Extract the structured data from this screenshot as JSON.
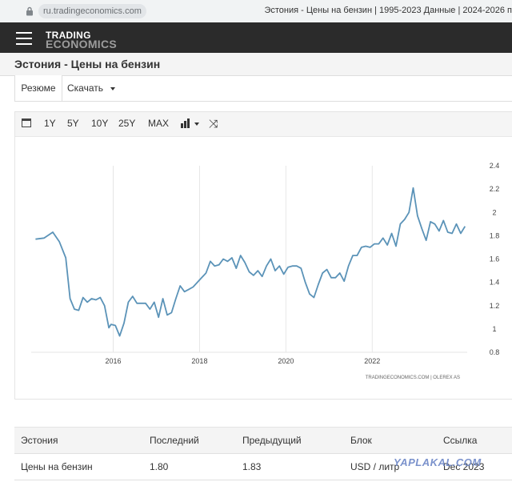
{
  "browser": {
    "url": "ru.tradingeconomics.com",
    "tab_title": "Эстония - Цены на бензин | 1995-2023 Данные | 2024-2026 п"
  },
  "brand": {
    "line1": "TRADING",
    "line2": "ECONOMICS"
  },
  "page": {
    "title": "Эстония - Цены на бензин"
  },
  "tabs": {
    "resume": "Резюме",
    "download": "Скачать"
  },
  "toolbar": {
    "ranges": [
      "1Y",
      "5Y",
      "10Y",
      "25Y",
      "MAX"
    ]
  },
  "chart_data": {
    "type": "line",
    "series": [
      {
        "x": [
          2014.2,
          2014.4,
          2014.6,
          2014.75,
          2014.9,
          2015.0,
          2015.1,
          2015.2,
          2015.3,
          2015.4,
          2015.5,
          2015.6,
          2015.7,
          2015.8,
          2015.9,
          2015.95,
          2016.05,
          2016.15,
          2016.25,
          2016.35,
          2016.45,
          2016.55,
          2016.65,
          2016.75,
          2016.85,
          2016.95,
          2017.05,
          2017.15,
          2017.25,
          2017.35,
          2017.45,
          2017.55,
          2017.65,
          2017.75,
          2017.85,
          2017.95,
          2018.05,
          2018.15,
          2018.25,
          2018.35,
          2018.45,
          2018.55,
          2018.65,
          2018.75,
          2018.85,
          2018.95,
          2019.05,
          2019.15,
          2019.25,
          2019.35,
          2019.45,
          2019.55,
          2019.65,
          2019.75,
          2019.85,
          2019.95,
          2020.05,
          2020.15,
          2020.25,
          2020.35,
          2020.45,
          2020.55,
          2020.65,
          2020.75,
          2020.85,
          2020.95,
          2021.05,
          2021.15,
          2021.25,
          2021.35,
          2021.45,
          2021.55,
          2021.65,
          2021.75,
          2021.85,
          2021.95,
          2022.05,
          2022.15,
          2022.25,
          2022.35,
          2022.45,
          2022.55,
          2022.65,
          2022.75,
          2022.85,
          2022.95,
          2023.05,
          2023.15,
          2023.25,
          2023.35,
          2023.45,
          2023.55,
          2023.65,
          2023.75,
          2023.85,
          2023.95,
          2024.05,
          2024.15
        ],
        "y": [
          1.77,
          1.78,
          1.83,
          1.75,
          1.61,
          1.26,
          1.17,
          1.16,
          1.27,
          1.23,
          1.26,
          1.25,
          1.27,
          1.2,
          1.01,
          1.04,
          1.03,
          0.94,
          1.05,
          1.23,
          1.28,
          1.22,
          1.22,
          1.22,
          1.17,
          1.23,
          1.1,
          1.26,
          1.12,
          1.14,
          1.26,
          1.37,
          1.32,
          1.34,
          1.36,
          1.4,
          1.44,
          1.48,
          1.58,
          1.54,
          1.55,
          1.6,
          1.58,
          1.61,
          1.52,
          1.63,
          1.57,
          1.49,
          1.46,
          1.5,
          1.45,
          1.54,
          1.6,
          1.5,
          1.54,
          1.47,
          1.53,
          1.54,
          1.54,
          1.52,
          1.4,
          1.3,
          1.27,
          1.38,
          1.48,
          1.51,
          1.44,
          1.44,
          1.48,
          1.41,
          1.54,
          1.63,
          1.63,
          1.7,
          1.71,
          1.7,
          1.73,
          1.73,
          1.78,
          1.72,
          1.82,
          1.71,
          1.9,
          1.94,
          2.0,
          2.21,
          1.97,
          1.86,
          1.76,
          1.92,
          1.9,
          1.84,
          1.93,
          1.83,
          1.82,
          1.9,
          1.82,
          1.88
        ]
      }
    ],
    "xticks": [
      "2016",
      "2018",
      "2020",
      "2022"
    ],
    "yticks": [
      "0.8",
      "1",
      "1.2",
      "1.4",
      "1.6",
      "1.8",
      "2",
      "2.2",
      "2.4"
    ],
    "xlim": [
      2014.1,
      2024.2
    ],
    "ylim": [
      0.8,
      2.4
    ],
    "grid": "vertical",
    "color": "#5b93b8",
    "source": "TRADINGECONOMICS.COM  |  OLEREX AS"
  },
  "table": {
    "headers": [
      "Эстония",
      "Последний",
      "Предыдущий",
      "Блок",
      "Ссылка"
    ],
    "rows": [
      [
        "Цены на бензин",
        "1.80",
        "1.83",
        "USD / литр",
        "Dec 2023"
      ]
    ]
  },
  "watermark": "YAPLAKAL.COM"
}
